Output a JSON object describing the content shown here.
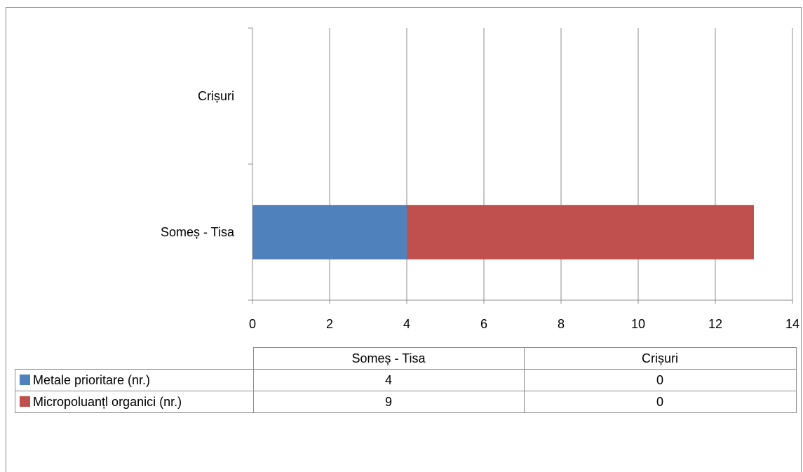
{
  "chart_data": {
    "type": "bar",
    "orientation": "horizontal",
    "stacked": true,
    "categories": [
      "Someș - Tisa",
      "Crișuri"
    ],
    "series": [
      {
        "name": "Metale prioritare (nr.)",
        "values": [
          4,
          0
        ],
        "color": "#4f81bd"
      },
      {
        "name": "Micropoluanțl organici (nr.)",
        "values": [
          9,
          0
        ],
        "color": "#c0504d"
      }
    ],
    "xlim": [
      0,
      14
    ],
    "xticks": [
      0,
      2,
      4,
      6,
      8,
      10,
      12,
      14
    ],
    "grid": "vertical",
    "legend": "data-table-below"
  },
  "table": {
    "columns": [
      "Someș - Tisa",
      "Crișuri"
    ],
    "rows": [
      {
        "label": "Metale prioritare (nr.)",
        "color": "#4f81bd",
        "values": [
          "4",
          "0"
        ]
      },
      {
        "label": "Micropoluanțl organici (nr.)",
        "color": "#c0504d",
        "values": [
          "9",
          "0"
        ]
      }
    ]
  }
}
